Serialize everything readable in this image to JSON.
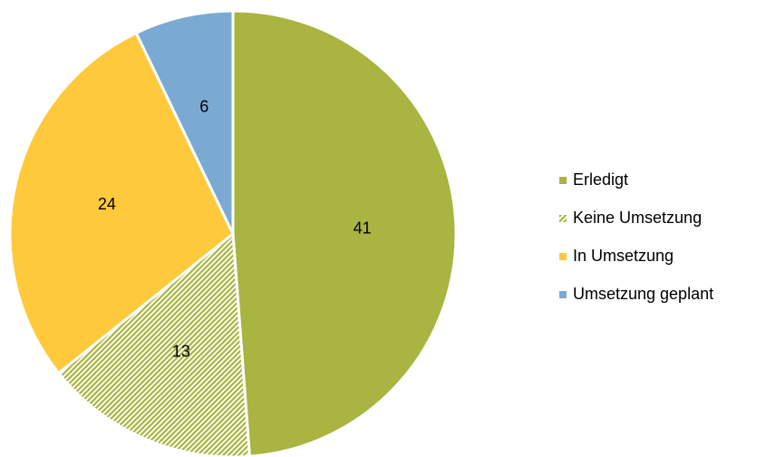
{
  "chart_data": {
    "type": "pie",
    "categories": [
      "Erledigt",
      "Keine Umsetzung",
      "In Umsetzung",
      "Umsetzung geplant"
    ],
    "values": [
      41,
      13,
      24,
      6
    ],
    "colors": [
      "#a9b441",
      "#a9b441",
      "#ffc93c",
      "#7aaad2"
    ],
    "patterns": [
      null,
      "diagonal-hatch",
      null,
      null
    ],
    "legend": "right"
  }
}
